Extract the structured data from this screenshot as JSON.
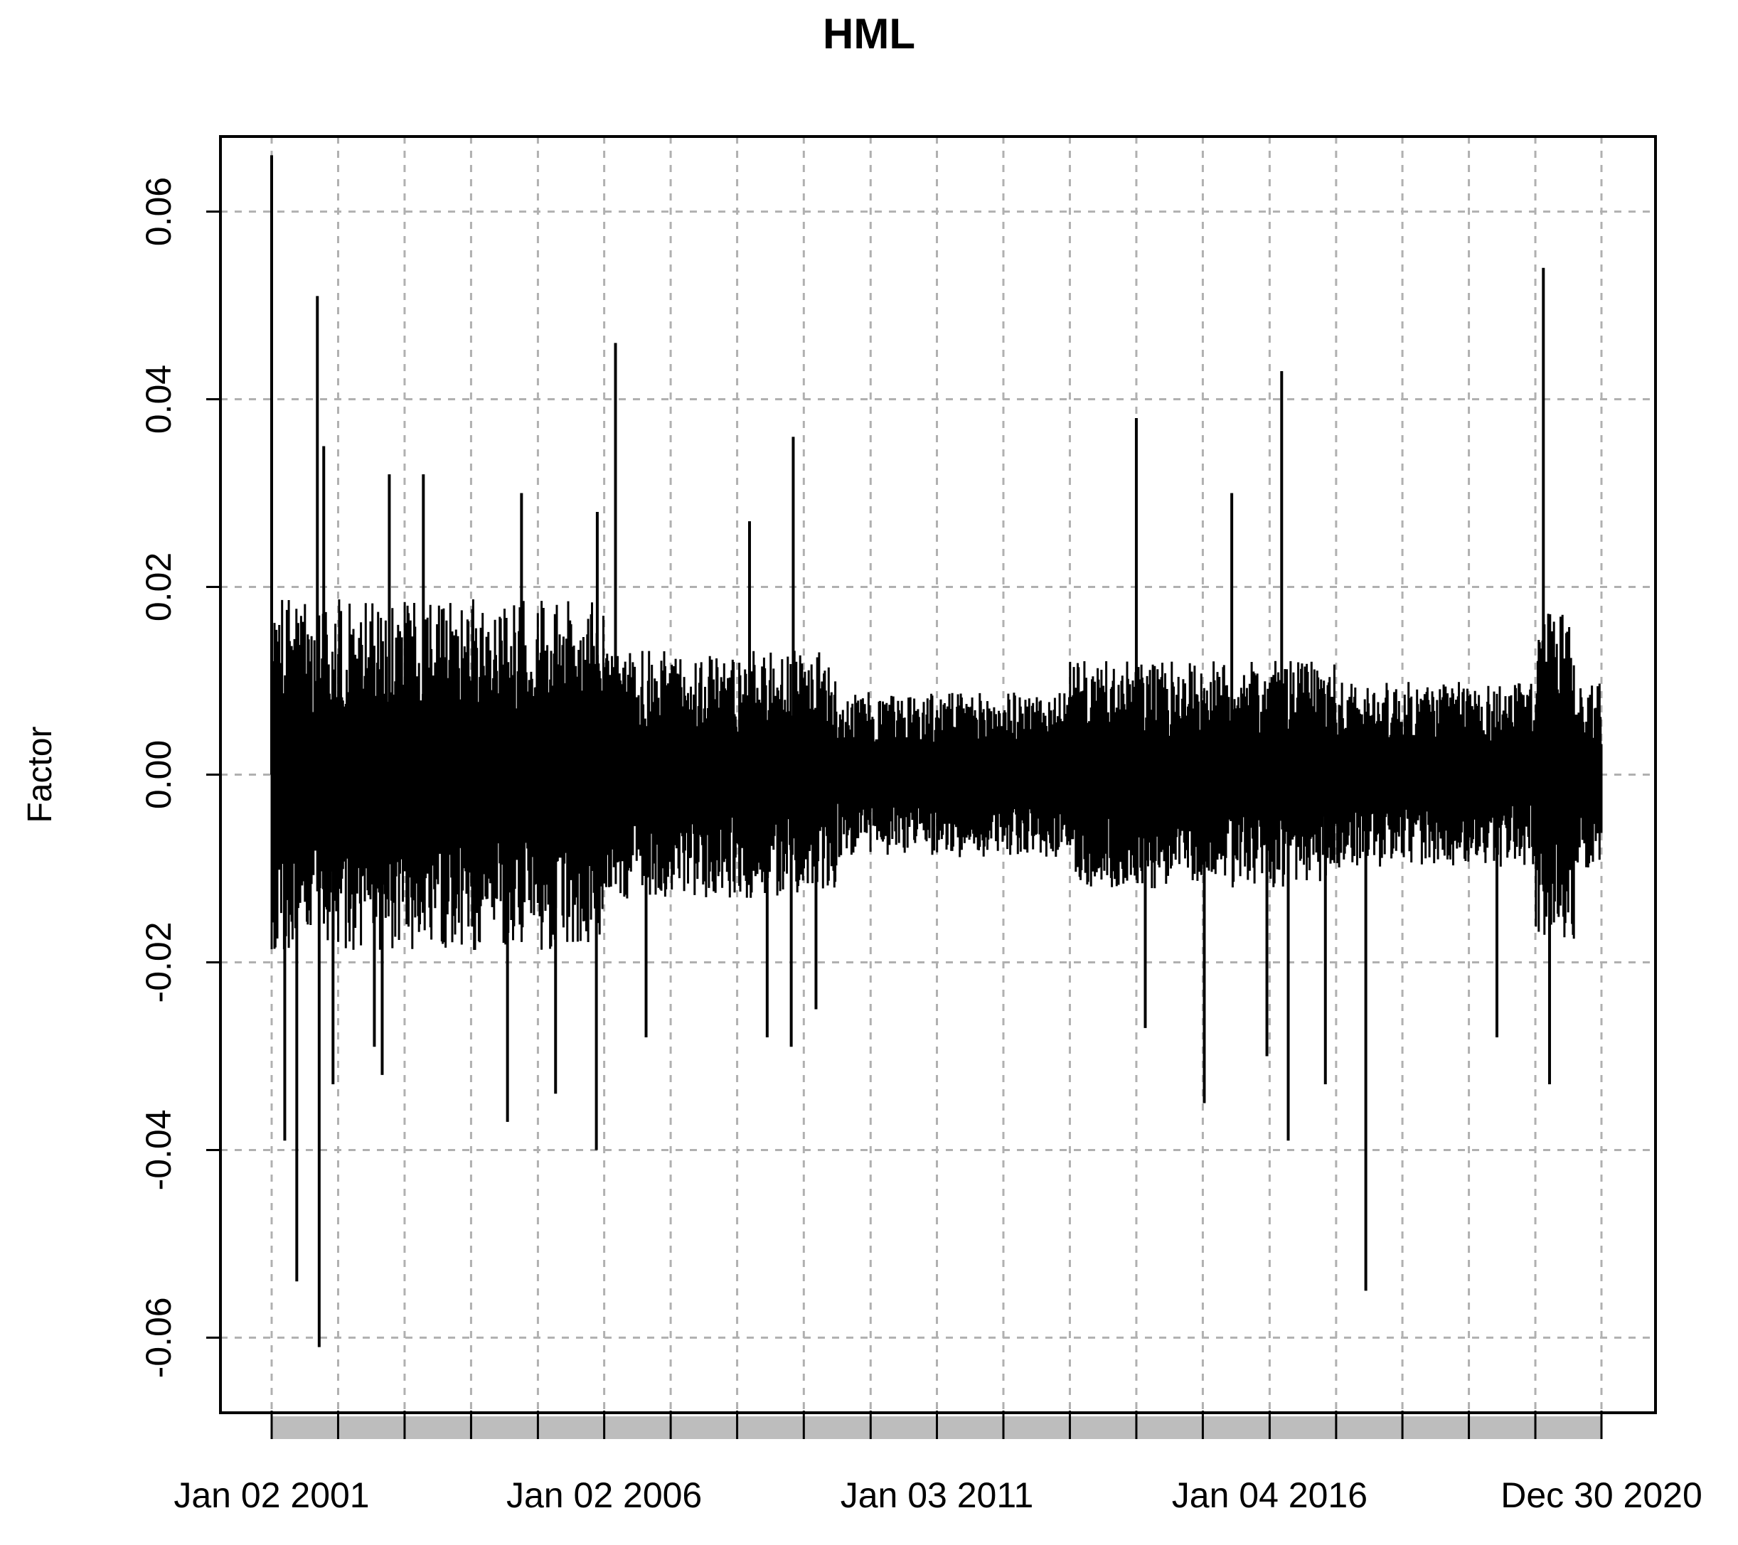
{
  "chart_data": {
    "type": "line",
    "title": "HML",
    "xlabel": "",
    "ylabel": "Factor",
    "ylim": [
      -0.068,
      0.068
    ],
    "yticks": [
      -0.06,
      -0.04,
      -0.02,
      0.0,
      0.02,
      0.04,
      0.06
    ],
    "ytick_labels": [
      "-0.06",
      "-0.04",
      "-0.02",
      "0.00",
      "0.02",
      "0.04",
      "0.06"
    ],
    "xlim": [
      "2001-01-02",
      "2020-12-30"
    ],
    "xtick_labels": [
      {
        "date": "2001-01-02",
        "label": "Jan 02 2001"
      },
      {
        "date": "2006-01-02",
        "label": "Jan 02 2006"
      },
      {
        "date": "2011-01-03",
        "label": "Jan 03 2011"
      },
      {
        "date": "2016-01-04",
        "label": "Jan 04 2016"
      },
      {
        "date": "2020-12-30",
        "label": "Dec 30 2020"
      }
    ],
    "xgrid_dates": [
      "2001-01-02",
      "2002-01-02",
      "2003-01-02",
      "2004-01-02",
      "2005-01-03",
      "2006-01-02",
      "2007-01-02",
      "2008-01-02",
      "2009-01-02",
      "2010-01-04",
      "2011-01-03",
      "2012-01-03",
      "2013-01-02",
      "2014-01-02",
      "2015-01-02",
      "2016-01-04",
      "2017-01-03",
      "2018-01-02",
      "2019-01-02",
      "2020-01-02",
      "2020-12-30"
    ],
    "grid": true,
    "color": "#000000",
    "series": [
      {
        "name": "",
        "points": [
          {
            "x": "2001-01-02",
            "y": 0.066
          },
          {
            "x": "2001-03-15",
            "y": -0.039
          },
          {
            "x": "2001-05-20",
            "y": -0.054
          },
          {
            "x": "2001-09-10",
            "y": 0.051
          },
          {
            "x": "2001-09-20",
            "y": -0.061
          },
          {
            "x": "2001-10-15",
            "y": 0.035
          },
          {
            "x": "2001-12-05",
            "y": -0.033
          },
          {
            "x": "2002-07-20",
            "y": -0.029
          },
          {
            "x": "2002-09-01",
            "y": -0.032
          },
          {
            "x": "2002-10-10",
            "y": 0.032
          },
          {
            "x": "2003-04-15",
            "y": 0.032
          },
          {
            "x": "2004-07-20",
            "y": -0.037
          },
          {
            "x": "2004-10-05",
            "y": 0.03
          },
          {
            "x": "2005-04-10",
            "y": -0.034
          },
          {
            "x": "2005-11-20",
            "y": -0.04
          },
          {
            "x": "2005-11-25",
            "y": 0.028
          },
          {
            "x": "2006-03-05",
            "y": 0.046
          },
          {
            "x": "2006-08-20",
            "y": -0.028
          },
          {
            "x": "2008-03-10",
            "y": 0.027
          },
          {
            "x": "2008-06-15",
            "y": -0.028
          },
          {
            "x": "2008-11-05",
            "y": 0.036
          },
          {
            "x": "2008-10-25",
            "y": -0.029
          },
          {
            "x": "2009-03-10",
            "y": -0.025
          },
          {
            "x": "2014-01-02",
            "y": 0.038
          },
          {
            "x": "2014-02-20",
            "y": -0.027
          },
          {
            "x": "2015-01-10",
            "y": -0.035
          },
          {
            "x": "2015-06-10",
            "y": 0.03
          },
          {
            "x": "2015-12-20",
            "y": -0.03
          },
          {
            "x": "2016-03-10",
            "y": 0.043
          },
          {
            "x": "2016-04-15",
            "y": -0.039
          },
          {
            "x": "2016-11-05",
            "y": -0.033
          },
          {
            "x": "2017-06-15",
            "y": -0.055
          },
          {
            "x": "2019-06-05",
            "y": -0.028
          },
          {
            "x": "2020-02-15",
            "y": 0.054
          },
          {
            "x": "2020-03-20",
            "y": -0.033
          }
        ]
      }
    ]
  }
}
